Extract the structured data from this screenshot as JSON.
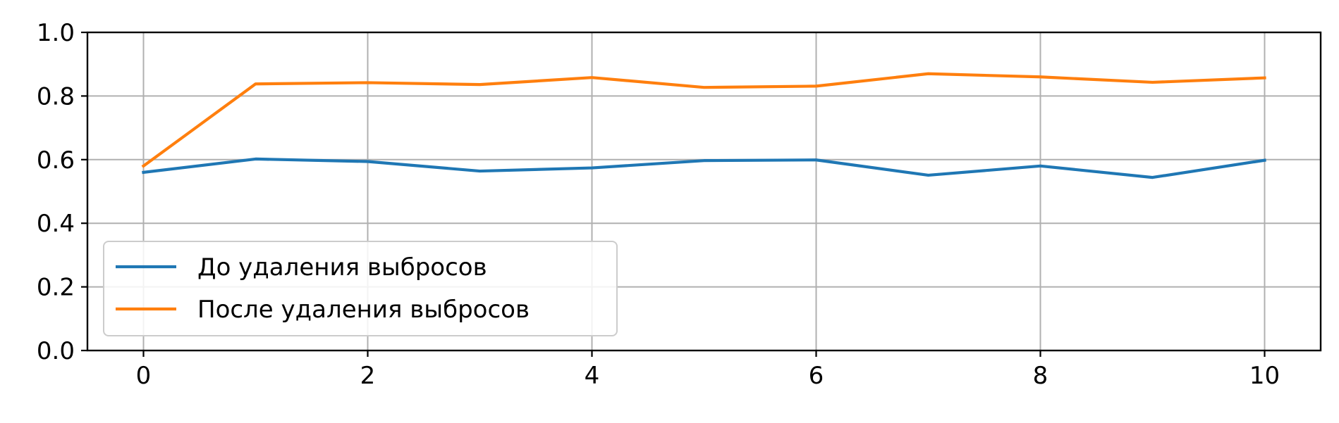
{
  "chart_data": {
    "type": "line",
    "title": "",
    "xlabel": "",
    "ylabel": "",
    "xlim": [
      -0.5,
      10.5
    ],
    "ylim": [
      0.0,
      1.0
    ],
    "xticks": [
      0,
      2,
      4,
      6,
      8,
      10
    ],
    "xtick_labels": [
      "0",
      "2",
      "4",
      "6",
      "8",
      "10"
    ],
    "yticks": [
      0.0,
      0.2,
      0.4,
      0.6,
      0.8,
      1.0
    ],
    "ytick_labels": [
      "0.0",
      "0.2",
      "0.4",
      "0.6",
      "0.8",
      "1.0"
    ],
    "grid": true,
    "legend_position": "lower-left",
    "x": [
      0,
      1,
      2,
      3,
      4,
      5,
      6,
      7,
      8,
      9,
      10
    ],
    "series": [
      {
        "name": "До удаления выбросов",
        "color": "#1f77b4",
        "values": [
          0.56,
          0.602,
          0.594,
          0.564,
          0.574,
          0.597,
          0.599,
          0.551,
          0.58,
          0.544,
          0.598
        ]
      },
      {
        "name": "После удаления выбросов",
        "color": "#ff7f0e",
        "values": [
          0.58,
          0.838,
          0.842,
          0.836,
          0.858,
          0.827,
          0.831,
          0.87,
          0.86,
          0.843,
          0.857
        ]
      }
    ]
  }
}
